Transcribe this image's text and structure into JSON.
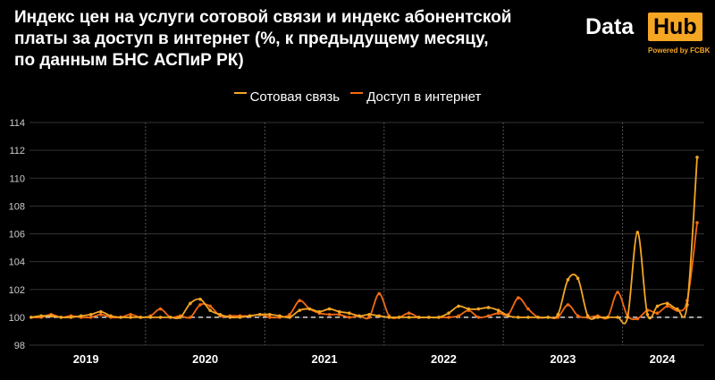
{
  "title_lines": [
    "Индекс цен на услуги сотовой связи и индекс абонентской",
    "платы за доступ в интернет (%, к предыдущему месяцу,",
    "по данным БНС АСПиР РК)"
  ],
  "logo": {
    "data": "Data",
    "hub": "Hub",
    "powered": "Powered by FCBK"
  },
  "colors": {
    "mobile": "#f5a623",
    "internet": "#f26a10",
    "background": "#000000",
    "grid": "#333333"
  },
  "chart_data": {
    "type": "line",
    "ylim": [
      98,
      114
    ],
    "yticks": [
      "98",
      "100",
      "102",
      "104",
      "106",
      "108",
      "110",
      "112",
      "114"
    ],
    "years": [
      "2019",
      "2020",
      "2021",
      "2022",
      "2023",
      "2024"
    ],
    "reference_line": 100,
    "legend_position": "top",
    "series": [
      {
        "name": "Сотовая связь",
        "values": [
          100.0,
          100.1,
          100.1,
          100.0,
          100.0,
          100.1,
          100.2,
          100.4,
          100.1,
          100.0,
          100.0,
          100.0,
          100.0,
          100.0,
          100.0,
          100.0,
          101.0,
          101.3,
          100.5,
          100.2,
          100.0,
          100.0,
          100.1,
          100.2,
          100.2,
          100.1,
          100.0,
          100.5,
          100.6,
          100.4,
          100.6,
          100.4,
          100.3,
          100.1,
          100.2,
          100.1,
          100.0,
          100.0,
          100.0,
          100.0,
          100.0,
          100.0,
          100.3,
          100.8,
          100.6,
          100.6,
          100.7,
          100.5,
          100.1,
          100.0,
          100.0,
          100.0,
          100.0,
          100.2,
          102.7,
          102.8,
          100.1,
          100.0,
          100.0,
          100.0,
          100.0,
          106.1,
          100.2,
          100.8,
          101.0,
          100.6,
          100.9,
          111.5
        ]
      },
      {
        "name": "Доступ в интернет",
        "values": [
          100.0,
          100.0,
          100.2,
          100.0,
          100.1,
          100.0,
          100.0,
          100.2,
          100.0,
          100.0,
          100.2,
          100.0,
          100.1,
          100.6,
          100.0,
          100.1,
          100.0,
          100.9,
          100.8,
          100.1,
          100.1,
          100.1,
          100.1,
          100.2,
          100.0,
          100.0,
          100.2,
          101.2,
          100.6,
          100.3,
          100.2,
          100.2,
          100.0,
          100.1,
          100.0,
          101.7,
          100.1,
          100.0,
          100.3,
          100.0,
          100.0,
          100.0,
          100.0,
          100.1,
          100.5,
          100.0,
          100.1,
          100.3,
          100.2,
          101.4,
          100.6,
          100.0,
          100.0,
          100.0,
          100.9,
          100.1,
          100.0,
          100.1,
          100.0,
          101.8,
          100.1,
          99.9,
          100.5,
          100.3,
          100.8,
          100.5,
          101.2,
          106.8
        ]
      }
    ]
  }
}
